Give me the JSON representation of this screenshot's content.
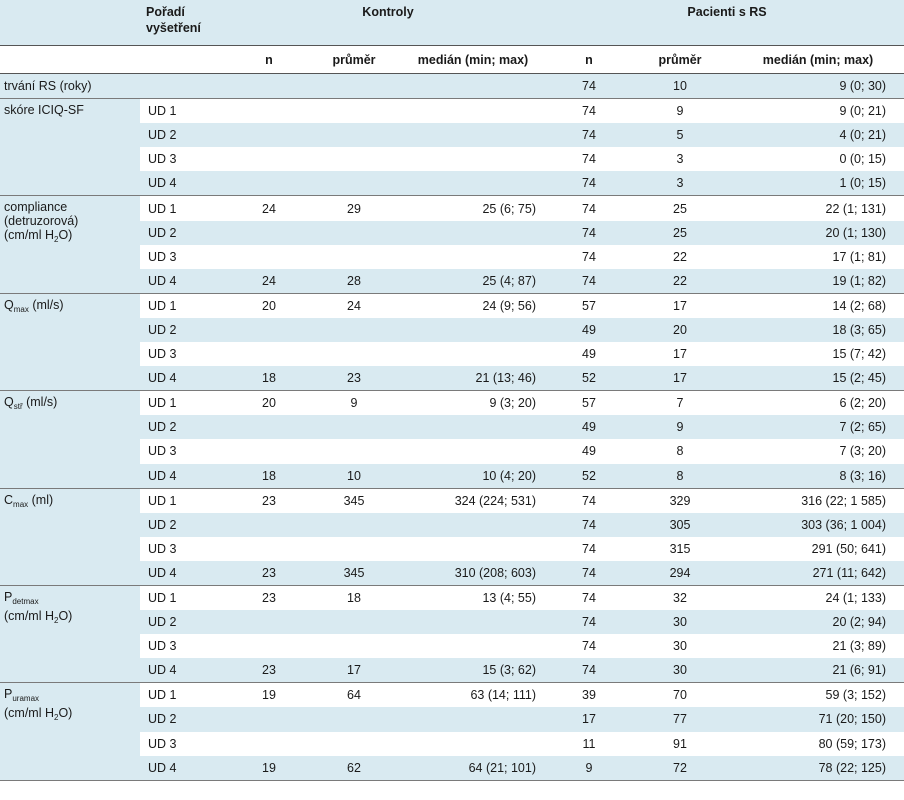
{
  "header": {
    "order": "Pořadí vyšetření",
    "controls": "Kontroly",
    "patients": "Pacienti s RS",
    "n": "n",
    "mean": "průměr",
    "median": "medián (min; max)"
  },
  "rows": {
    "duration": {
      "label": "trvání RS (roky)",
      "pn": "74",
      "pm": "10",
      "pmed": "9 (0; 30)"
    },
    "iciq": {
      "label": "skóre ICIQ-SF",
      "r": [
        {
          "ud": "UD 1",
          "pn": "74",
          "pm": "9",
          "pmed": "9 (0; 21)"
        },
        {
          "ud": "UD 2",
          "pn": "74",
          "pm": "5",
          "pmed": "4 (0; 21)"
        },
        {
          "ud": "UD 3",
          "pn": "74",
          "pm": "3",
          "pmed": "0 (0; 15)"
        },
        {
          "ud": "UD 4",
          "pn": "74",
          "pm": "3",
          "pmed": "1 (0; 15)"
        }
      ]
    },
    "compliance": {
      "label_a": "compliance",
      "label_b": "(detruzorová)",
      "label_c": "(cm/ml H",
      "label_sub": "2",
      "label_d": "O)",
      "r": [
        {
          "ud": "UD 1",
          "cn": "24",
          "cm": "29",
          "cmed": "25 (6; 75)",
          "pn": "74",
          "pm": "25",
          "pmed": "22 (1; 131)"
        },
        {
          "ud": "UD 2",
          "pn": "74",
          "pm": "25",
          "pmed": "20 (1; 130)"
        },
        {
          "ud": "UD 3",
          "pn": "74",
          "pm": "22",
          "pmed": "17 (1; 81)"
        },
        {
          "ud": "UD 4",
          "cn": "24",
          "cm": "28",
          "cmed": "25 (4; 87)",
          "pn": "74",
          "pm": "22",
          "pmed": "19 (1; 82)"
        }
      ]
    },
    "qmax": {
      "label_main": "Q",
      "label_sub": "max",
      "label_unit": " (ml/s)",
      "r": [
        {
          "ud": "UD 1",
          "cn": "20",
          "cm": "24",
          "cmed": "24 (9; 56)",
          "pn": "57",
          "pm": "17",
          "pmed": "14 (2; 68)"
        },
        {
          "ud": "UD 2",
          "pn": "49",
          "pm": "20",
          "pmed": "18 (3; 65)"
        },
        {
          "ud": "UD 3",
          "pn": "49",
          "pm": "17",
          "pmed": "15 (7; 42)"
        },
        {
          "ud": "UD 4",
          "cn": "18",
          "cm": "23",
          "cmed": "21 (13; 46)",
          "pn": "52",
          "pm": "17",
          "pmed": "15 (2; 45)"
        }
      ]
    },
    "qstr": {
      "label_main": "Q",
      "label_sub": "stř",
      "label_unit": " (ml/s)",
      "r": [
        {
          "ud": "UD 1",
          "cn": "20",
          "cm": "9",
          "cmed": "9 (3; 20)",
          "pn": "57",
          "pm": "7",
          "pmed": "6 (2; 20)"
        },
        {
          "ud": "UD 2",
          "pn": "49",
          "pm": "9",
          "pmed": "7 (2; 65)"
        },
        {
          "ud": "UD 3",
          "pn": "49",
          "pm": "8",
          "pmed": "7 (3; 20)"
        },
        {
          "ud": "UD 4",
          "cn": "18",
          "cm": "10",
          "cmed": "10 (4; 20)",
          "pn": "52",
          "pm": "8",
          "pmed": "8 (3; 16)"
        }
      ]
    },
    "cmax": {
      "label_main": "C",
      "label_sub": "max",
      "label_unit": " (ml)",
      "r": [
        {
          "ud": "UD 1",
          "cn": "23",
          "cm": "345",
          "cmed": "324 (224; 531)",
          "pn": "74",
          "pm": "329",
          "pmed": "316 (22; 1 585)"
        },
        {
          "ud": "UD 2",
          "pn": "74",
          "pm": "305",
          "pmed": "303 (36; 1 004)"
        },
        {
          "ud": "UD 3",
          "pn": "74",
          "pm": "315",
          "pmed": "291 (50; 641)"
        },
        {
          "ud": "UD 4",
          "cn": "23",
          "cm": "345",
          "cmed": "310 (208; 603)",
          "pn": "74",
          "pm": "294",
          "pmed": "271 (11; 642)"
        }
      ]
    },
    "pdetmax": {
      "label_main": "P",
      "label_sub": "detmax",
      "label_c": "(cm/ml H",
      "label_sub2": "2",
      "label_d": "O)",
      "r": [
        {
          "ud": "UD 1",
          "cn": "23",
          "cm": "18",
          "cmed": "13 (4; 55)",
          "pn": "74",
          "pm": "32",
          "pmed": "24 (1; 133)"
        },
        {
          "ud": "UD 2",
          "pn": "74",
          "pm": "30",
          "pmed": "20 (2; 94)"
        },
        {
          "ud": "UD 3",
          "pn": "74",
          "pm": "30",
          "pmed": "21 (3; 89)"
        },
        {
          "ud": "UD 4",
          "cn": "23",
          "cm": "17",
          "cmed": "15 (3; 62)",
          "pn": "74",
          "pm": "30",
          "pmed": "21 (6; 91)"
        }
      ]
    },
    "puramax": {
      "label_main": "P",
      "label_sub": "uramax",
      "label_c": "(cm/ml H",
      "label_sub2": "2",
      "label_d": "O)",
      "r": [
        {
          "ud": "UD 1",
          "cn": "19",
          "cm": "64",
          "cmed": "63 (14; 111)",
          "pn": "39",
          "pm": "70",
          "pmed": "59 (3; 152)"
        },
        {
          "ud": "UD 2",
          "pn": "17",
          "pm": "77",
          "pmed": "71 (20; 150)"
        },
        {
          "ud": "UD 3",
          "pn": "11",
          "pm": "91",
          "pmed": "80 (59; 173)"
        },
        {
          "ud": "UD 4",
          "cn": "19",
          "cm": "62",
          "cmed": "64 (21; 101)",
          "pn": "9",
          "pm": "72",
          "pmed": "78 (22; 125)"
        }
      ]
    }
  }
}
